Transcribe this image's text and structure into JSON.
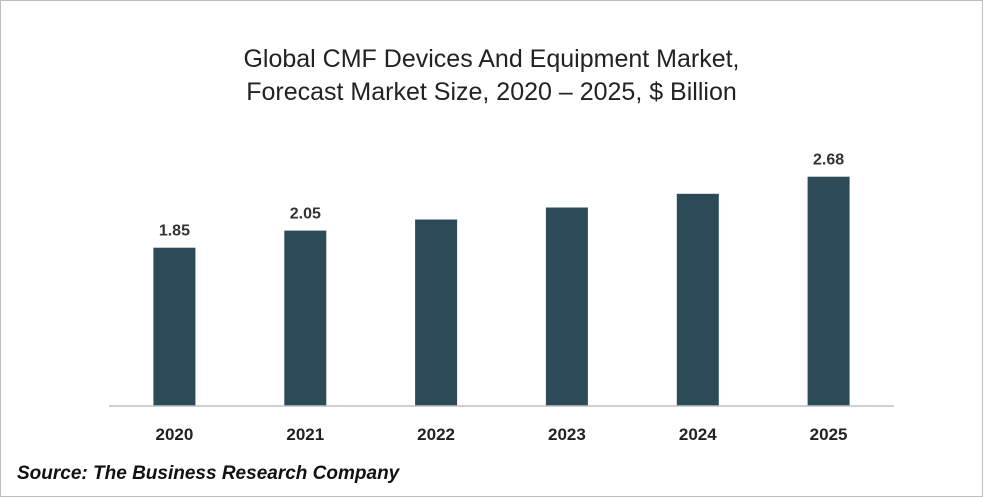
{
  "title_lines": [
    "Global CMF Devices And Equipment Market,",
    "Forecast Market Size, 2020 – 2025, $ Billion"
  ],
  "source": "Source: The Business Research Company",
  "colors": {
    "bar": "#2d4a58",
    "axis": "#bfbfbf",
    "text": "#333333"
  },
  "chart_data": {
    "type": "bar",
    "title": "Global CMF Devices And Equipment Market, Forecast Market Size, 2020 – 2025, $ Billion",
    "categories": [
      "2020",
      "2021",
      "2022",
      "2023",
      "2024",
      "2025"
    ],
    "values": [
      1.85,
      2.05,
      2.18,
      2.32,
      2.48,
      2.68
    ],
    "data_labels": [
      "1.85",
      "2.05",
      "",
      "",
      "",
      "2.68"
    ],
    "xlabel": "",
    "ylabel": "",
    "ylim": [
      0,
      2.7
    ],
    "grid": false,
    "legend": "none"
  }
}
